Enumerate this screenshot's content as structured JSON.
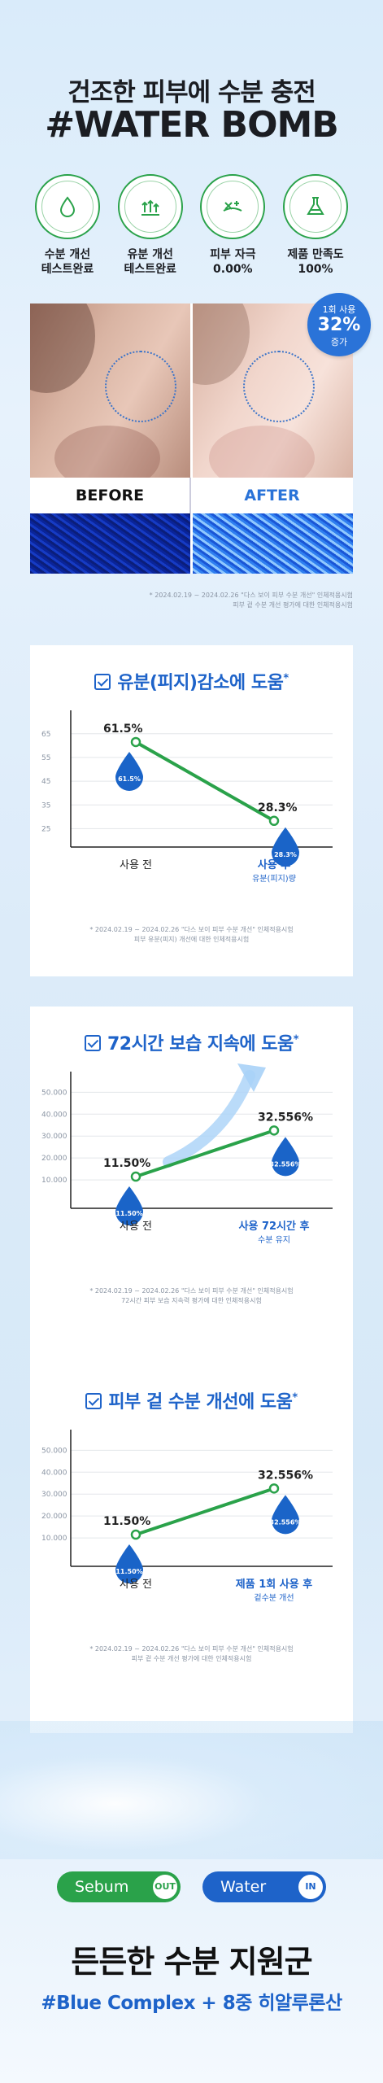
{
  "header": {
    "subtitle": "건조한 피부에 수분 충전",
    "title": "#WATER BOMB"
  },
  "badges": [
    {
      "icon": "water-drop-icon",
      "ring_text": "수분 개선 테스트 완료",
      "label_line1": "수분 개선",
      "label_line2": "테스트완료"
    },
    {
      "icon": "oil-control-icon",
      "ring_text": "유분 개선 테스트 완료",
      "label_line1": "유분 개선",
      "label_line2": "테스트완료"
    },
    {
      "icon": "skin-irritation-icon",
      "ring_text": "피부 자극 테스트 완료",
      "label_line1": "피부 자극",
      "label_line2": "0.00%"
    },
    {
      "icon": "flask-icon",
      "ring_text": "제품 만족도 테스트 완료",
      "label_line1": "제품 만족도",
      "label_line2": "100%"
    }
  ],
  "before_after": {
    "before_label": "BEFORE",
    "after_label": "AFTER",
    "burst_line1": "1회 사용",
    "burst_value": "32%",
    "burst_line3": "증가"
  },
  "note_top": {
    "line1": "* 2024.02.19 ~ 2024.02.26 \"다스 보이 피부 수분 개선\" 인체적용시험",
    "line2": "피부 겉 수분 개선 평가에 대한 인체적용시험"
  },
  "colors": {
    "primary_blue": "#1e63c9",
    "line_green": "#2aa24a",
    "drop_blue": "#1a64c8"
  },
  "chart_data": [
    {
      "type": "line",
      "title": "유분(피지)감소에 도움",
      "title_mark": "*",
      "categories": [
        "사용 전",
        "사용 후"
      ],
      "category_sub": [
        "",
        "유분(피지)량"
      ],
      "values": [
        61.5,
        28.3
      ],
      "value_labels": [
        "61.5%",
        "28.3%"
      ],
      "drop_labels": [
        "61.5%",
        "28.3%"
      ],
      "yticks": [
        "65",
        "55",
        "45",
        "35",
        "25"
      ],
      "ylim": [
        20,
        68
      ],
      "grid": true,
      "note_line1": "* 2024.02.19 ~ 2024.02.26 \"다스 보이 피부 수분 개선\" 인체적용시험",
      "note_line2": "피부 유분(피지) 개선에 대한 인체적용시험"
    },
    {
      "type": "line",
      "title": "72시간 보습 지속에 도움",
      "title_mark": "*",
      "categories": [
        "사용 전",
        "사용 72시간 후"
      ],
      "category_sub": [
        "",
        "수분 유지"
      ],
      "values": [
        11.5,
        32.556
      ],
      "value_labels": [
        "11.50%",
        "32.556%"
      ],
      "drop_labels": [
        "11.50%",
        "32.556%"
      ],
      "yticks": [
        "50.000",
        "40.000",
        "30.000",
        "20.000",
        "10.000"
      ],
      "ylim": [
        0,
        52
      ],
      "grid": true,
      "arrow": true,
      "note_line1": "* 2024.02.19 ~ 2024.02.26 \"다스 보이 피부 수분 개선\" 인체적용시험",
      "note_line2": "72시간 피부 보습 지속력 평가에 대한 인체적용시험"
    },
    {
      "type": "line",
      "title": "피부 겉 수분 개선에 도움",
      "title_mark": "*",
      "categories": [
        "사용 전",
        "제품 1회 사용 후"
      ],
      "category_sub": [
        "",
        "겉수분 개선"
      ],
      "values": [
        11.5,
        32.556
      ],
      "value_labels": [
        "11.50%",
        "32.556%"
      ],
      "drop_labels": [
        "11.50%",
        "32.556%"
      ],
      "yticks": [
        "50.000",
        "40.000",
        "30.000",
        "20.000",
        "10.000"
      ],
      "ylim": [
        0,
        52
      ],
      "grid": true,
      "note_line1": "* 2024.02.19 ~ 2024.02.26 \"다스 보이 피부 수분 개선\" 인체적용시험",
      "note_line2": "피부 겉 수분 개선 평가에 대한 인체적용시험"
    }
  ],
  "bottom": {
    "pill_sebum": "Sebum",
    "pill_sebum_tag": "OUT",
    "pill_water": "Water",
    "pill_water_tag": "IN",
    "title": "든든한 수분 지원군",
    "subtitle": "#Blue Complex + 8중 히알루론산"
  }
}
